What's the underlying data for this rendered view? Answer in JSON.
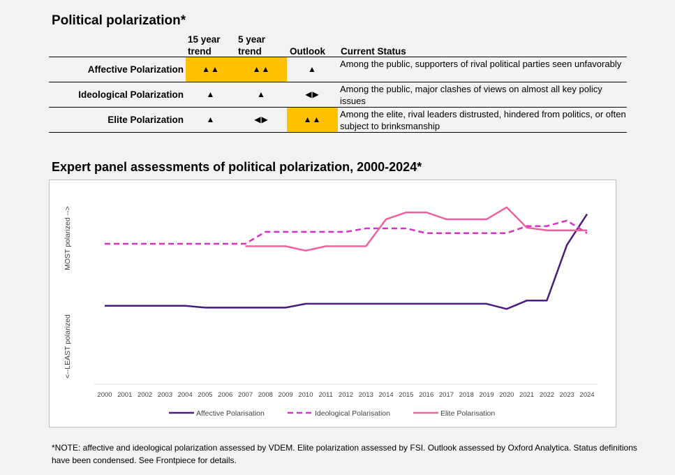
{
  "title": "Political polarization*",
  "table": {
    "headers": {
      "fifteen_line1": "15 year",
      "fifteen_line2": "trend",
      "five_line1": "5 year",
      "five_line2": "trend",
      "outlook": "Outlook",
      "status": "Current Status"
    },
    "rows": [
      {
        "name": "Affective Polarization",
        "fifteen_year": "▲▲",
        "five_year": "▲▲",
        "outlook": "▲",
        "status": "Among the public, supporters of rival political parties seen unfavorably",
        "highlight_color": "#ffc000"
      },
      {
        "name": "Ideological Polarization",
        "fifteen_year": "▲",
        "five_year": "▲",
        "outlook": "◀▶",
        "status": "Among the public, major clashes of views on almost all key policy issues"
      },
      {
        "name": "Elite Polarization",
        "fifteen_year": "▲",
        "five_year": "◀▶",
        "outlook": "▲▲",
        "status": "Among the elite, rival leaders distrusted, hindered from politics, or often subject to brinksmanship"
      }
    ]
  },
  "chart_heading": "Expert panel assessments of political polarization, 2000-2024*",
  "chart_data": {
    "type": "line",
    "x": [
      2000,
      2001,
      2002,
      2003,
      2004,
      2005,
      2006,
      2007,
      2008,
      2009,
      2010,
      2011,
      2012,
      2013,
      2014,
      2015,
      2016,
      2017,
      2018,
      2019,
      2020,
      2021,
      2022,
      2023,
      2024
    ],
    "ylabel_top": "MOST polarized -->",
    "ylabel_bottom": "<--LEAST polarized",
    "ylim": [
      0,
      100
    ],
    "series": [
      {
        "name": "Affective Polarisation",
        "color": "#4b1a7f",
        "style": "solid",
        "values": [
          41.3,
          41.3,
          41.3,
          41.3,
          41.3,
          40.3,
          40.3,
          40.3,
          40.3,
          40.3,
          42.3,
          42.3,
          42.3,
          42.3,
          42.3,
          42.3,
          42.3,
          42.3,
          42.3,
          42.3,
          39.6,
          44.0,
          44.0,
          73.3,
          89.5
        ]
      },
      {
        "name": "Ideological Polarisation",
        "color": "#d531c4",
        "style": "dashed",
        "values": [
          73.9,
          73.9,
          73.9,
          73.9,
          73.9,
          73.9,
          73.9,
          73.9,
          80.2,
          80.2,
          80.2,
          80.2,
          80.2,
          82.0,
          82.0,
          82.0,
          79.5,
          79.5,
          79.5,
          79.5,
          79.5,
          83.2,
          83.2,
          86.1,
          79.5
        ]
      },
      {
        "name": "Elite Polarization",
        "color": "#f0609e",
        "style": "solid",
        "values": [
          null,
          null,
          null,
          null,
          null,
          null,
          null,
          72.6,
          72.6,
          72.6,
          70.3,
          72.6,
          72.6,
          72.6,
          86.8,
          90.4,
          90.4,
          86.8,
          86.8,
          86.8,
          93.1,
          82.4,
          81.0,
          81.0,
          81.0
        ]
      }
    ],
    "legend_labels": [
      "Affective Polarisation",
      "Ideological Polarisation",
      "Elite Polarisation"
    ],
    "legend_position": "bottom"
  },
  "note": "*NOTE: affective and ideological polarization assessed by VDEM. Elite polarization assessed by FSI. Outlook assessed by Oxford Analytica. Status definitions have been condensed. See Frontpiece for details."
}
